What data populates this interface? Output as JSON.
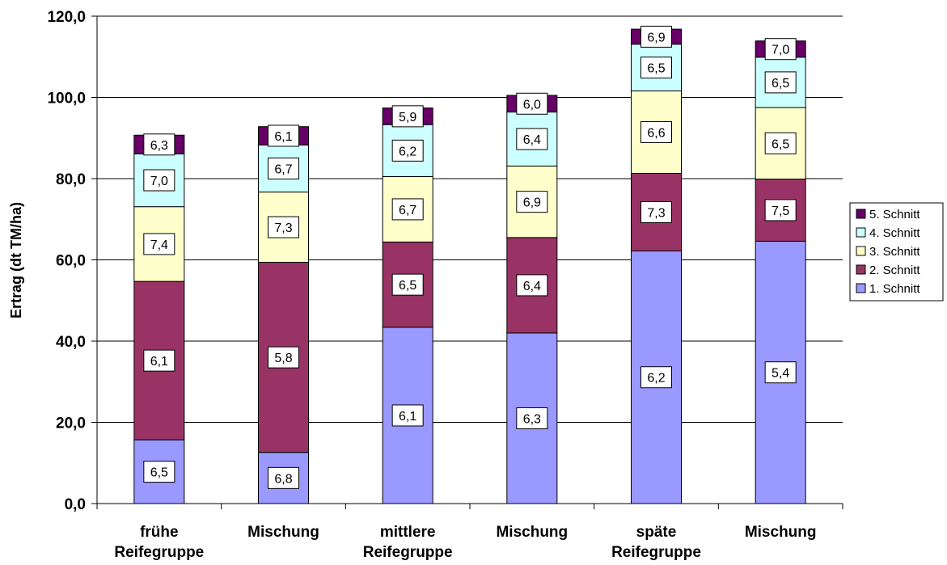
{
  "chart_data": {
    "type": "bar",
    "stacked": true,
    "title": "",
    "xlabel": "",
    "ylabel": "Ertrag (dt TM/ha)",
    "ylim": [
      0,
      120
    ],
    "yticks": [
      "0,0",
      "20,0",
      "40,0",
      "60,0",
      "80,0",
      "100,0",
      "120,0"
    ],
    "grid": true,
    "legend_position": "right",
    "categories": [
      [
        "frühe",
        "Reifegruppe"
      ],
      [
        "Mischung"
      ],
      [
        "mittlere",
        "Reifegruppe"
      ],
      [
        "Mischung"
      ],
      [
        "späte",
        "Reifegruppe"
      ],
      [
        "Mischung"
      ]
    ],
    "series": [
      {
        "name": "1. Schnitt",
        "color": "#9999ff",
        "values": [
          15.7,
          12.6,
          43.4,
          42.0,
          62.2,
          64.6
        ],
        "labels": [
          "6,5",
          "6,8",
          "6,1",
          "6,3",
          "6,2",
          "5,4"
        ]
      },
      {
        "name": "2. Schnitt",
        "color": "#993366",
        "values": [
          39.0,
          46.8,
          21.0,
          23.5,
          19.1,
          15.3
        ],
        "labels": [
          "6,1",
          "5,8",
          "6,5",
          "6,4",
          "7,3",
          "7,5"
        ]
      },
      {
        "name": "3. Schnitt",
        "color": "#ffffcc",
        "values": [
          18.4,
          17.3,
          16.1,
          17.6,
          20.3,
          17.6
        ],
        "labels": [
          "7,4",
          "7,3",
          "6,7",
          "6,9",
          "6,6",
          "6,5"
        ]
      },
      {
        "name": "4. Schnitt",
        "color": "#ccffff",
        "values": [
          13.0,
          11.6,
          12.8,
          13.3,
          11.5,
          12.4
        ],
        "labels": [
          "7,0",
          "6,7",
          "6,2",
          "6,4",
          "6,5",
          "6,5"
        ]
      },
      {
        "name": "5. Schnitt",
        "color": "#660066",
        "values": [
          4.6,
          4.5,
          4.1,
          4.1,
          3.7,
          4.0
        ],
        "labels": [
          "6,3",
          "6,1",
          "5,9",
          "6,0",
          "6,9",
          "7,0"
        ]
      }
    ]
  }
}
